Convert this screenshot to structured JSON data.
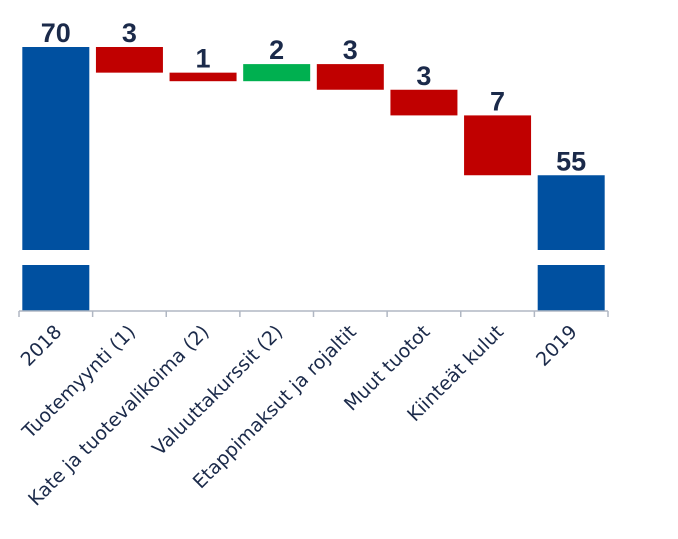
{
  "chart_data": {
    "type": "bar",
    "subtype": "waterfall",
    "categories": [
      "2018",
      "Tuotemyynti (1)",
      "Kate ja tuotevalikoima (2)",
      "Valuuttakurssit (2)",
      "Etappimaksut ja rojaltit",
      "Muut tuotot",
      "Kiinteät kulut",
      "2019"
    ],
    "values": [
      70,
      -3,
      -1,
      2,
      -3,
      -3,
      -7,
      55
    ],
    "value_labels": [
      "70",
      "3",
      "1",
      "2",
      "3",
      "3",
      "7",
      "55"
    ],
    "kinds": [
      "total",
      "delta",
      "delta",
      "delta",
      "delta",
      "delta",
      "delta",
      "total"
    ],
    "axis_break": true,
    "grid": false,
    "legend": "none",
    "title": "",
    "xlabel": "",
    "ylabel": ""
  },
  "colors": {
    "total": "#0050a0",
    "decrease": "#c00000",
    "increase": "#00b050",
    "axis": "#b0b7c3",
    "text": "#1b2a4a"
  }
}
